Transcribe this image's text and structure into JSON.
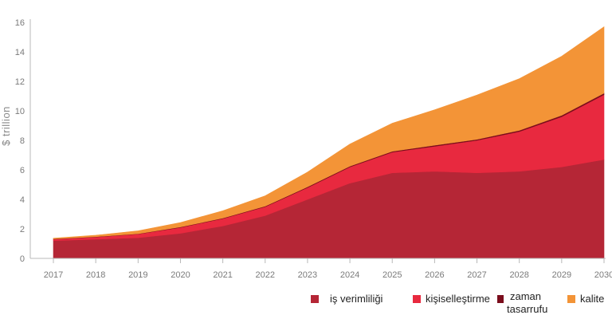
{
  "chart_data": {
    "type": "area",
    "stacked": true,
    "title": "",
    "xlabel": "",
    "ylabel": "$ trillion",
    "ylim": [
      0,
      16
    ],
    "yticks": [
      0,
      2,
      4,
      6,
      8,
      10,
      12,
      14,
      16
    ],
    "grid": false,
    "legend_position": "bottom-right",
    "x": [
      "2017",
      "2018",
      "2019",
      "2020",
      "2021",
      "2022",
      "2023",
      "2024",
      "2025",
      "2026",
      "2027",
      "2028",
      "2029",
      "2030"
    ],
    "series": [
      {
        "name": "iş verimliliği",
        "color": "#b52636",
        "values": [
          1.2,
          1.3,
          1.4,
          1.7,
          2.2,
          2.9,
          4.0,
          5.1,
          5.8,
          5.9,
          5.8,
          5.9,
          6.2,
          6.7
        ]
      },
      {
        "name": "kişiselleştirme",
        "color": "#e8293f",
        "values": [
          0.1,
          0.15,
          0.25,
          0.4,
          0.5,
          0.6,
          0.8,
          1.1,
          1.4,
          1.7,
          2.2,
          2.7,
          3.4,
          4.4
        ]
      },
      {
        "name": "zaman\ntasarrufu",
        "color": "#7a0d1c",
        "values": [
          0.02,
          0.02,
          0.02,
          0.03,
          0.03,
          0.04,
          0.05,
          0.05,
          0.06,
          0.07,
          0.07,
          0.08,
          0.1,
          0.1
        ]
      },
      {
        "name": "kalite",
        "color": "#f39437",
        "values": [
          0.05,
          0.1,
          0.2,
          0.3,
          0.5,
          0.7,
          1.0,
          1.5,
          1.9,
          2.4,
          3.0,
          3.5,
          4.0,
          4.5
        ]
      }
    ]
  },
  "legend": {
    "item1": "iş verimliliği",
    "item2": "kişiselleştirme",
    "item3_line1": "zaman",
    "item3_line2": "tasarrufu",
    "item4": "kalite"
  }
}
